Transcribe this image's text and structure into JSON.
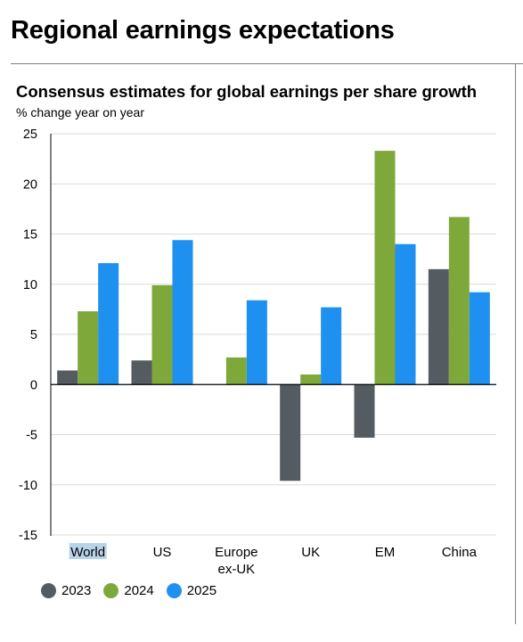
{
  "header": {
    "title": "Regional earnings expectations"
  },
  "chart_data": {
    "type": "bar",
    "title": "Consensus estimates for global earnings per share growth",
    "subtitle": "% change year on year",
    "xlabel": "",
    "ylabel": "",
    "categories": [
      "World",
      "US",
      "Europe\nex-UK",
      "UK",
      "EM",
      "China"
    ],
    "series": [
      {
        "name": "2023",
        "color": "#545b61",
        "values": [
          1.4,
          2.4,
          0.0,
          -9.6,
          -5.3,
          11.5
        ]
      },
      {
        "name": "2024",
        "color": "#7ea83a",
        "values": [
          7.3,
          9.9,
          2.7,
          1.0,
          23.3,
          16.7
        ]
      },
      {
        "name": "2025",
        "color": "#1e90f0",
        "values": [
          12.1,
          14.4,
          8.4,
          7.7,
          14.0,
          9.2
        ]
      }
    ],
    "ylim": [
      -15,
      25
    ],
    "yticks": [
      25,
      20,
      15,
      10,
      5,
      0,
      -5,
      -10,
      -15
    ],
    "grid": true,
    "legend": "bottom-left"
  }
}
